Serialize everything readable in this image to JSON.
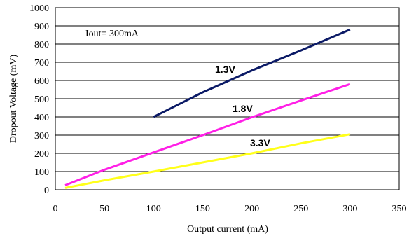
{
  "chart_data": {
    "type": "line",
    "xlabel": "Output current (mA)",
    "ylabel": "Dropout Voltage (mV)",
    "xlim": [
      0,
      350
    ],
    "ylim": [
      0,
      1000
    ],
    "xticks": [
      0,
      50,
      100,
      150,
      200,
      250,
      300,
      350
    ],
    "yticks": [
      0,
      100,
      200,
      300,
      400,
      500,
      600,
      700,
      800,
      900,
      1000
    ],
    "grid": "horizontal",
    "annotation": "Iout= 300mA",
    "series": [
      {
        "name": "1.3V",
        "color": "#0b1a66",
        "x": [
          100,
          150,
          200,
          250,
          300
        ],
        "y": [
          400,
          535,
          655,
          765,
          880
        ]
      },
      {
        "name": "1.8V",
        "color": "#ff1fe6",
        "x": [
          10,
          50,
          100,
          150,
          200,
          250,
          300
        ],
        "y": [
          25,
          110,
          205,
          300,
          398,
          490,
          580
        ]
      },
      {
        "name": "3.3V",
        "color": "#ffff1a",
        "x": [
          10,
          50,
          100,
          150,
          200,
          250,
          300
        ],
        "y": [
          10,
          52,
          100,
          150,
          200,
          255,
          305
        ]
      }
    ]
  }
}
